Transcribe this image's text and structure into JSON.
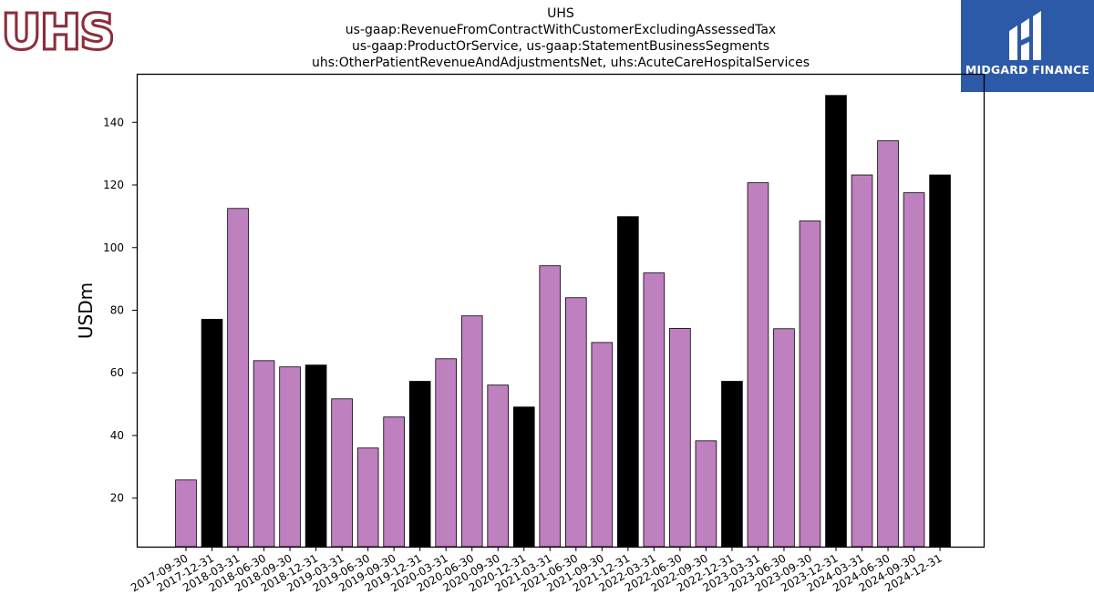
{
  "title_lines": [
    "UHS",
    "us-gaap:RevenueFromContractWithCustomerExcludingAssessedTax",
    "us-gaap:ProductOrService, us-gaap:StatementBusinessSegments",
    "uhs:OtherPatientRevenueAndAdjustmentsNet, uhs:AcuteCareHospitalServices"
  ],
  "logo_left": {
    "text": "UHS",
    "color": "#8b2f3d"
  },
  "logo_right": {
    "brand": "MIDGARD FINANCE",
    "background": "#2c5aa8"
  },
  "colors": {
    "quarter": "#bf80bf",
    "year_end": "#000000"
  },
  "chart_data": {
    "type": "bar",
    "ylabel": "USDm",
    "xlabel": "",
    "ylim": [
      4.5,
      155.5
    ],
    "yticks": [
      20,
      40,
      60,
      80,
      100,
      120,
      140
    ],
    "grid": false,
    "categories": [
      "2017-09-30",
      "2017-12-31",
      "2018-03-31",
      "2018-06-30",
      "2018-09-30",
      "2018-12-31",
      "2019-03-31",
      "2019-06-30",
      "2019-09-30",
      "2019-12-31",
      "2020-03-31",
      "2020-06-30",
      "2020-09-30",
      "2020-12-31",
      "2021-03-31",
      "2021-06-30",
      "2021-09-30",
      "2021-12-31",
      "2022-03-31",
      "2022-06-30",
      "2022-09-30",
      "2022-12-31",
      "2023-03-31",
      "2023-06-30",
      "2023-09-30",
      "2023-12-31",
      "2024-03-31",
      "2024-06-30",
      "2024-09-30",
      "2024-12-31"
    ],
    "values": [
      25.8,
      77.1,
      112.5,
      63.9,
      61.9,
      62.5,
      51.7,
      36.0,
      45.9,
      57.3,
      64.5,
      78.2,
      56.1,
      49.1,
      94.2,
      84.0,
      69.7,
      109.9,
      91.9,
      74.2,
      38.3,
      57.3,
      120.7,
      74.1,
      108.5,
      148.6,
      123.2,
      134.1,
      117.5,
      123.2
    ],
    "year_end": [
      false,
      true,
      false,
      false,
      false,
      true,
      false,
      false,
      false,
      true,
      false,
      false,
      false,
      true,
      false,
      false,
      false,
      true,
      false,
      false,
      false,
      true,
      false,
      false,
      false,
      true,
      false,
      false,
      false,
      true
    ]
  }
}
